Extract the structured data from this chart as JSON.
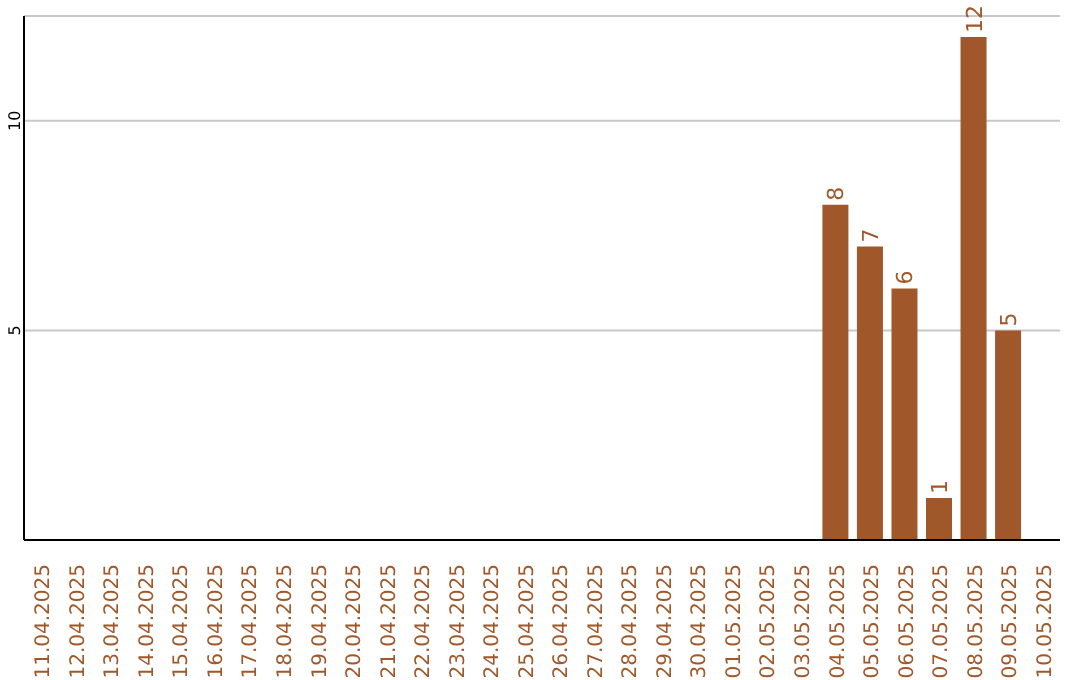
{
  "chart_data": {
    "type": "bar",
    "categories": [
      "11.04.2025",
      "12.04.2025",
      "13.04.2025",
      "14.04.2025",
      "15.04.2025",
      "16.04.2025",
      "17.04.2025",
      "18.04.2025",
      "19.04.2025",
      "20.04.2025",
      "21.04.2025",
      "22.04.2025",
      "23.04.2025",
      "24.04.2025",
      "25.04.2025",
      "26.04.2025",
      "27.04.2025",
      "28.04.2025",
      "29.04.2025",
      "30.04.2025",
      "01.05.2025",
      "02.05.2025",
      "03.05.2025",
      "04.05.2025",
      "05.05.2025",
      "06.05.2025",
      "07.05.2025",
      "08.05.2025",
      "09.05.2025",
      "10.05.2025"
    ],
    "values": [
      0,
      0,
      0,
      0,
      0,
      0,
      0,
      0,
      0,
      0,
      0,
      0,
      0,
      0,
      0,
      0,
      0,
      0,
      0,
      0,
      0,
      0,
      0,
      8,
      7,
      6,
      1,
      12,
      5,
      0
    ],
    "value_labels": [
      null,
      null,
      null,
      null,
      null,
      null,
      null,
      null,
      null,
      null,
      null,
      null,
      null,
      null,
      null,
      null,
      null,
      null,
      null,
      null,
      null,
      null,
      null,
      "8",
      "7",
      "6",
      "1",
      "12",
      "5",
      null
    ],
    "color": "#a0582a",
    "ylim": [
      0,
      12.5
    ],
    "yticks": [
      5,
      10
    ],
    "grid": "y"
  }
}
